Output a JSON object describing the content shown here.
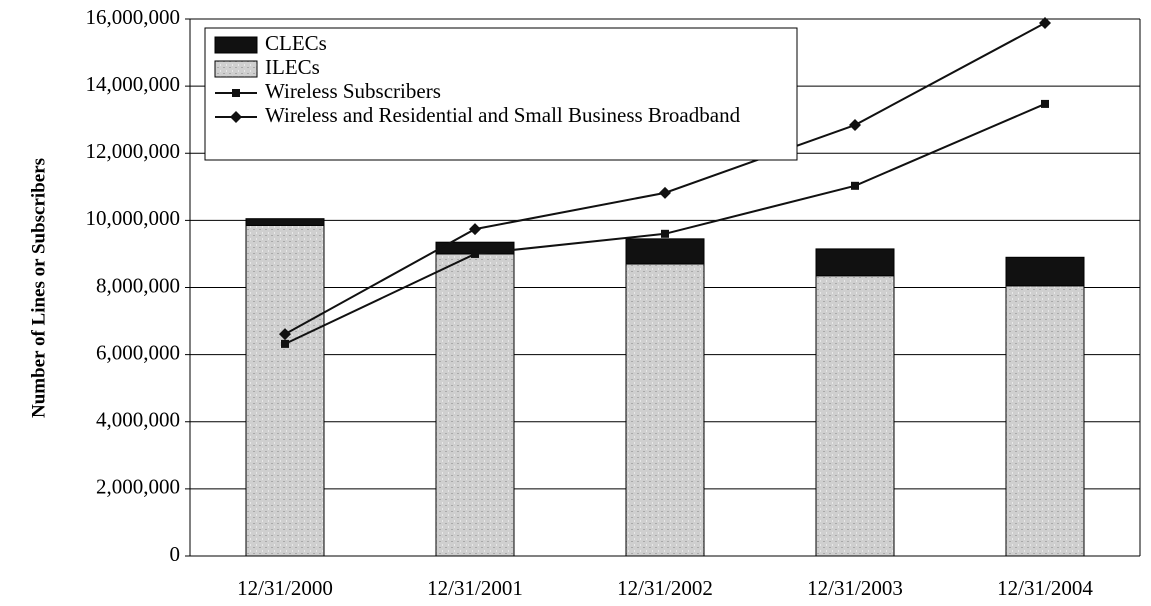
{
  "chart_data": {
    "type": "bar",
    "stacked": true,
    "ylabel": "Number of Lines or Subscribers",
    "categories": [
      "12/31/2000",
      "12/31/2001",
      "12/31/2002",
      "12/31/2003",
      "12/31/2004"
    ],
    "series": [
      {
        "name": "CLECs",
        "kind": "bar",
        "color": "#111111",
        "values": [
          200000,
          350000,
          750000,
          800000,
          850000
        ]
      },
      {
        "name": "ILECs",
        "kind": "bar",
        "color": "#c9c9c9",
        "values": [
          9850000,
          9000000,
          8700000,
          8350000,
          8050000
        ]
      },
      {
        "name": "Wireless Subscribers",
        "kind": "line",
        "marker": "square",
        "color": "#111111",
        "values": [
          6320000,
          9000000,
          9600000,
          11030000,
          13470000
        ]
      },
      {
        "name": "Wireless and Residential and Small Business Broadband",
        "kind": "line",
        "marker": "diamond",
        "color": "#111111",
        "values": [
          6610000,
          9740000,
          10820000,
          12840000,
          15880000
        ]
      }
    ],
    "ylim": [
      0,
      16000000
    ],
    "yticks": [
      0,
      {
        "value": 2000000,
        "label": "2,000,000"
      },
      {
        "value": 4000000,
        "label": "4,000,000"
      },
      {
        "value": 6000000,
        "label": "6,000,000"
      },
      {
        "value": 8000000,
        "label": "8,000,000"
      },
      {
        "value": 10000000,
        "label": "10,000,000"
      },
      {
        "value": 12000000,
        "label": "12,000,000"
      },
      {
        "value": 14000000,
        "label": "14,000,000"
      },
      {
        "value": 16000000,
        "label": "16,000,000"
      }
    ],
    "grid": true,
    "legend": "top-left"
  }
}
